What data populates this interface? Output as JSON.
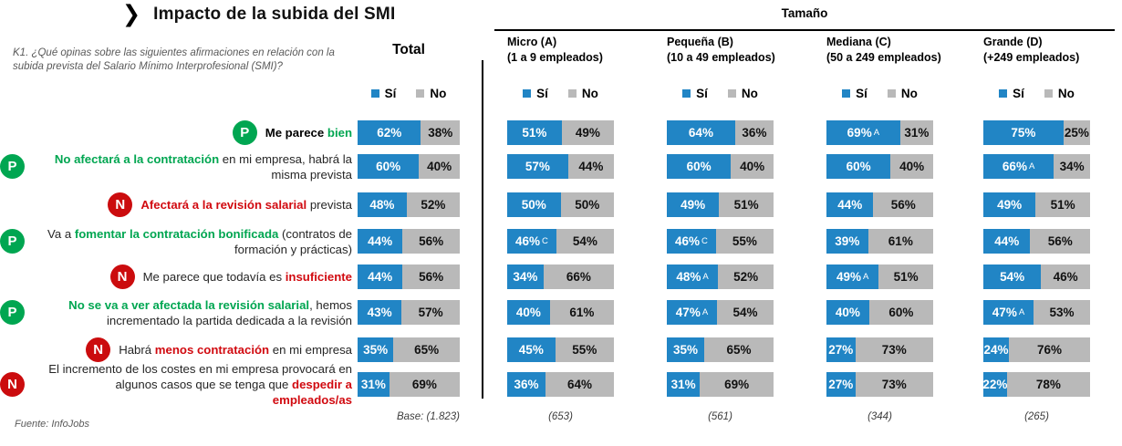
{
  "header": {
    "title": "Impacto de la subida del SMI",
    "chevron_icon": "❯"
  },
  "question": "K1. ¿Qué opinas sobre las siguientes afirmaciones en relación con la subida prevista del Salario Mínimo Interprofesional (SMI)?",
  "group_header": "Tamaño",
  "footer": {
    "source": "Fuente: InfoJobs"
  },
  "colors": {
    "si": "#2185c5",
    "no": "#b9b9b9",
    "positive": "#00a651",
    "negative": "#cb0c0e",
    "negative_text": "#d10a10"
  },
  "chart_data": {
    "type": "bar",
    "subtype": "horizontal-stacked-percent",
    "title": "Impacto de la subida del SMI",
    "legend": [
      "Sí",
      "No"
    ],
    "legend_position": "top-of-each-column",
    "columns": [
      {
        "label": "Total",
        "sublabel": "",
        "base": "Base: (1.823)"
      },
      {
        "label": "Micro (A)",
        "sublabel": "(1 a 9 empleados)",
        "base": "(653)"
      },
      {
        "label": "Pequeña (B)",
        "sublabel": "(10 a 49 empleados)",
        "base": "(561)"
      },
      {
        "label": "Mediana (C)",
        "sublabel": "(50 a 249 empleados)",
        "base": "(344)"
      },
      {
        "label": "Grande (D)",
        "sublabel": "(+249 empleados)",
        "base": "(265)"
      }
    ],
    "rows": [
      {
        "statement": "Me parece bien",
        "sentiment": "positive",
        "badge": "P",
        "label_segments": [
          {
            "t": "Me parece ",
            "s": "black-bold"
          },
          {
            "t": "bien",
            "s": "green-bold"
          }
        ],
        "si": [
          62,
          51,
          64,
          69,
          75
        ],
        "no": [
          38,
          49,
          36,
          31,
          25
        ],
        "si_flags": [
          "",
          "",
          "",
          "A",
          ""
        ]
      },
      {
        "statement": "No afectará a la contratación en mi empresa, habrá la misma prevista",
        "sentiment": "positive",
        "badge": "P",
        "label_segments": [
          {
            "t": "No afectará a la contratación",
            "s": "green-bold"
          },
          {
            "t": " en mi empresa, habrá la misma prevista",
            "s": "normal"
          }
        ],
        "si": [
          60,
          57,
          60,
          60,
          66
        ],
        "no": [
          40,
          44,
          40,
          40,
          34
        ],
        "si_flags": [
          "",
          "",
          "",
          "",
          "A"
        ]
      },
      {
        "statement": "Afectará a la revisión salarial prevista",
        "sentiment": "negative",
        "badge": "N",
        "label_segments": [
          {
            "t": "Afectará a la revisión salarial",
            "s": "red-bold"
          },
          {
            "t": " prevista",
            "s": "normal"
          }
        ],
        "si": [
          48,
          50,
          49,
          44,
          49
        ],
        "no": [
          52,
          50,
          51,
          56,
          51
        ],
        "si_flags": [
          "",
          "",
          "",
          "",
          ""
        ]
      },
      {
        "statement": "Va a fomentar la contratación bonificada (contratos de formación y prácticas)",
        "sentiment": "positive",
        "badge": "P",
        "label_segments": [
          {
            "t": "Va a ",
            "s": "normal"
          },
          {
            "t": "fomentar la contratación bonificada",
            "s": "green-bold"
          },
          {
            "t": " (contratos de formación y prácticas)",
            "s": "normal"
          }
        ],
        "si": [
          44,
          46,
          46,
          39,
          44
        ],
        "no": [
          56,
          54,
          55,
          61,
          56
        ],
        "si_flags": [
          "",
          "C",
          "C",
          "",
          ""
        ]
      },
      {
        "statement": "Me parece que todavía es insuficiente",
        "sentiment": "negative",
        "badge": "N",
        "label_segments": [
          {
            "t": "Me parece que todavía es ",
            "s": "normal"
          },
          {
            "t": "insuficiente",
            "s": "red-bold"
          }
        ],
        "si": [
          44,
          34,
          48,
          49,
          54
        ],
        "no": [
          56,
          66,
          52,
          51,
          46
        ],
        "si_flags": [
          "",
          "",
          "A",
          "A",
          ""
        ]
      },
      {
        "statement": "No se va a ver afectada la revisión salarial, hemos incrementado la partida dedicada a la revisión",
        "sentiment": "positive",
        "badge": "P",
        "label_segments": [
          {
            "t": "No se va a ver afectada la revisión salarial",
            "s": "green-bold"
          },
          {
            "t": ", hemos incrementado la partida dedicada a la revisión",
            "s": "normal"
          }
        ],
        "si": [
          43,
          40,
          47,
          40,
          47
        ],
        "no": [
          57,
          61,
          54,
          60,
          53
        ],
        "si_flags": [
          "",
          "",
          "A",
          "",
          "A"
        ]
      },
      {
        "statement": "Habrá menos contratación en mi empresa",
        "sentiment": "negative",
        "badge": "N",
        "label_segments": [
          {
            "t": "Habrá ",
            "s": "normal"
          },
          {
            "t": "menos contratación",
            "s": "red-bold"
          },
          {
            "t": " en mi empresa",
            "s": "normal"
          }
        ],
        "si": [
          35,
          45,
          35,
          27,
          24
        ],
        "no": [
          65,
          55,
          65,
          73,
          76
        ],
        "si_flags": [
          "",
          "",
          "",
          "",
          ""
        ]
      },
      {
        "statement": "El incremento de los costes en mi empresa provocará en algunos casos que se tenga que despedir a empleados/as",
        "sentiment": "negative",
        "badge": "N",
        "label_segments": [
          {
            "t": "El incremento de los costes en mi empresa provocará en algunos casos que se tenga que ",
            "s": "normal"
          },
          {
            "t": "despedir a empleados/as",
            "s": "red-bold"
          }
        ],
        "si": [
          31,
          36,
          31,
          27,
          22
        ],
        "no": [
          69,
          64,
          69,
          73,
          78
        ],
        "si_flags": [
          "",
          "",
          "",
          "",
          ""
        ]
      }
    ]
  }
}
